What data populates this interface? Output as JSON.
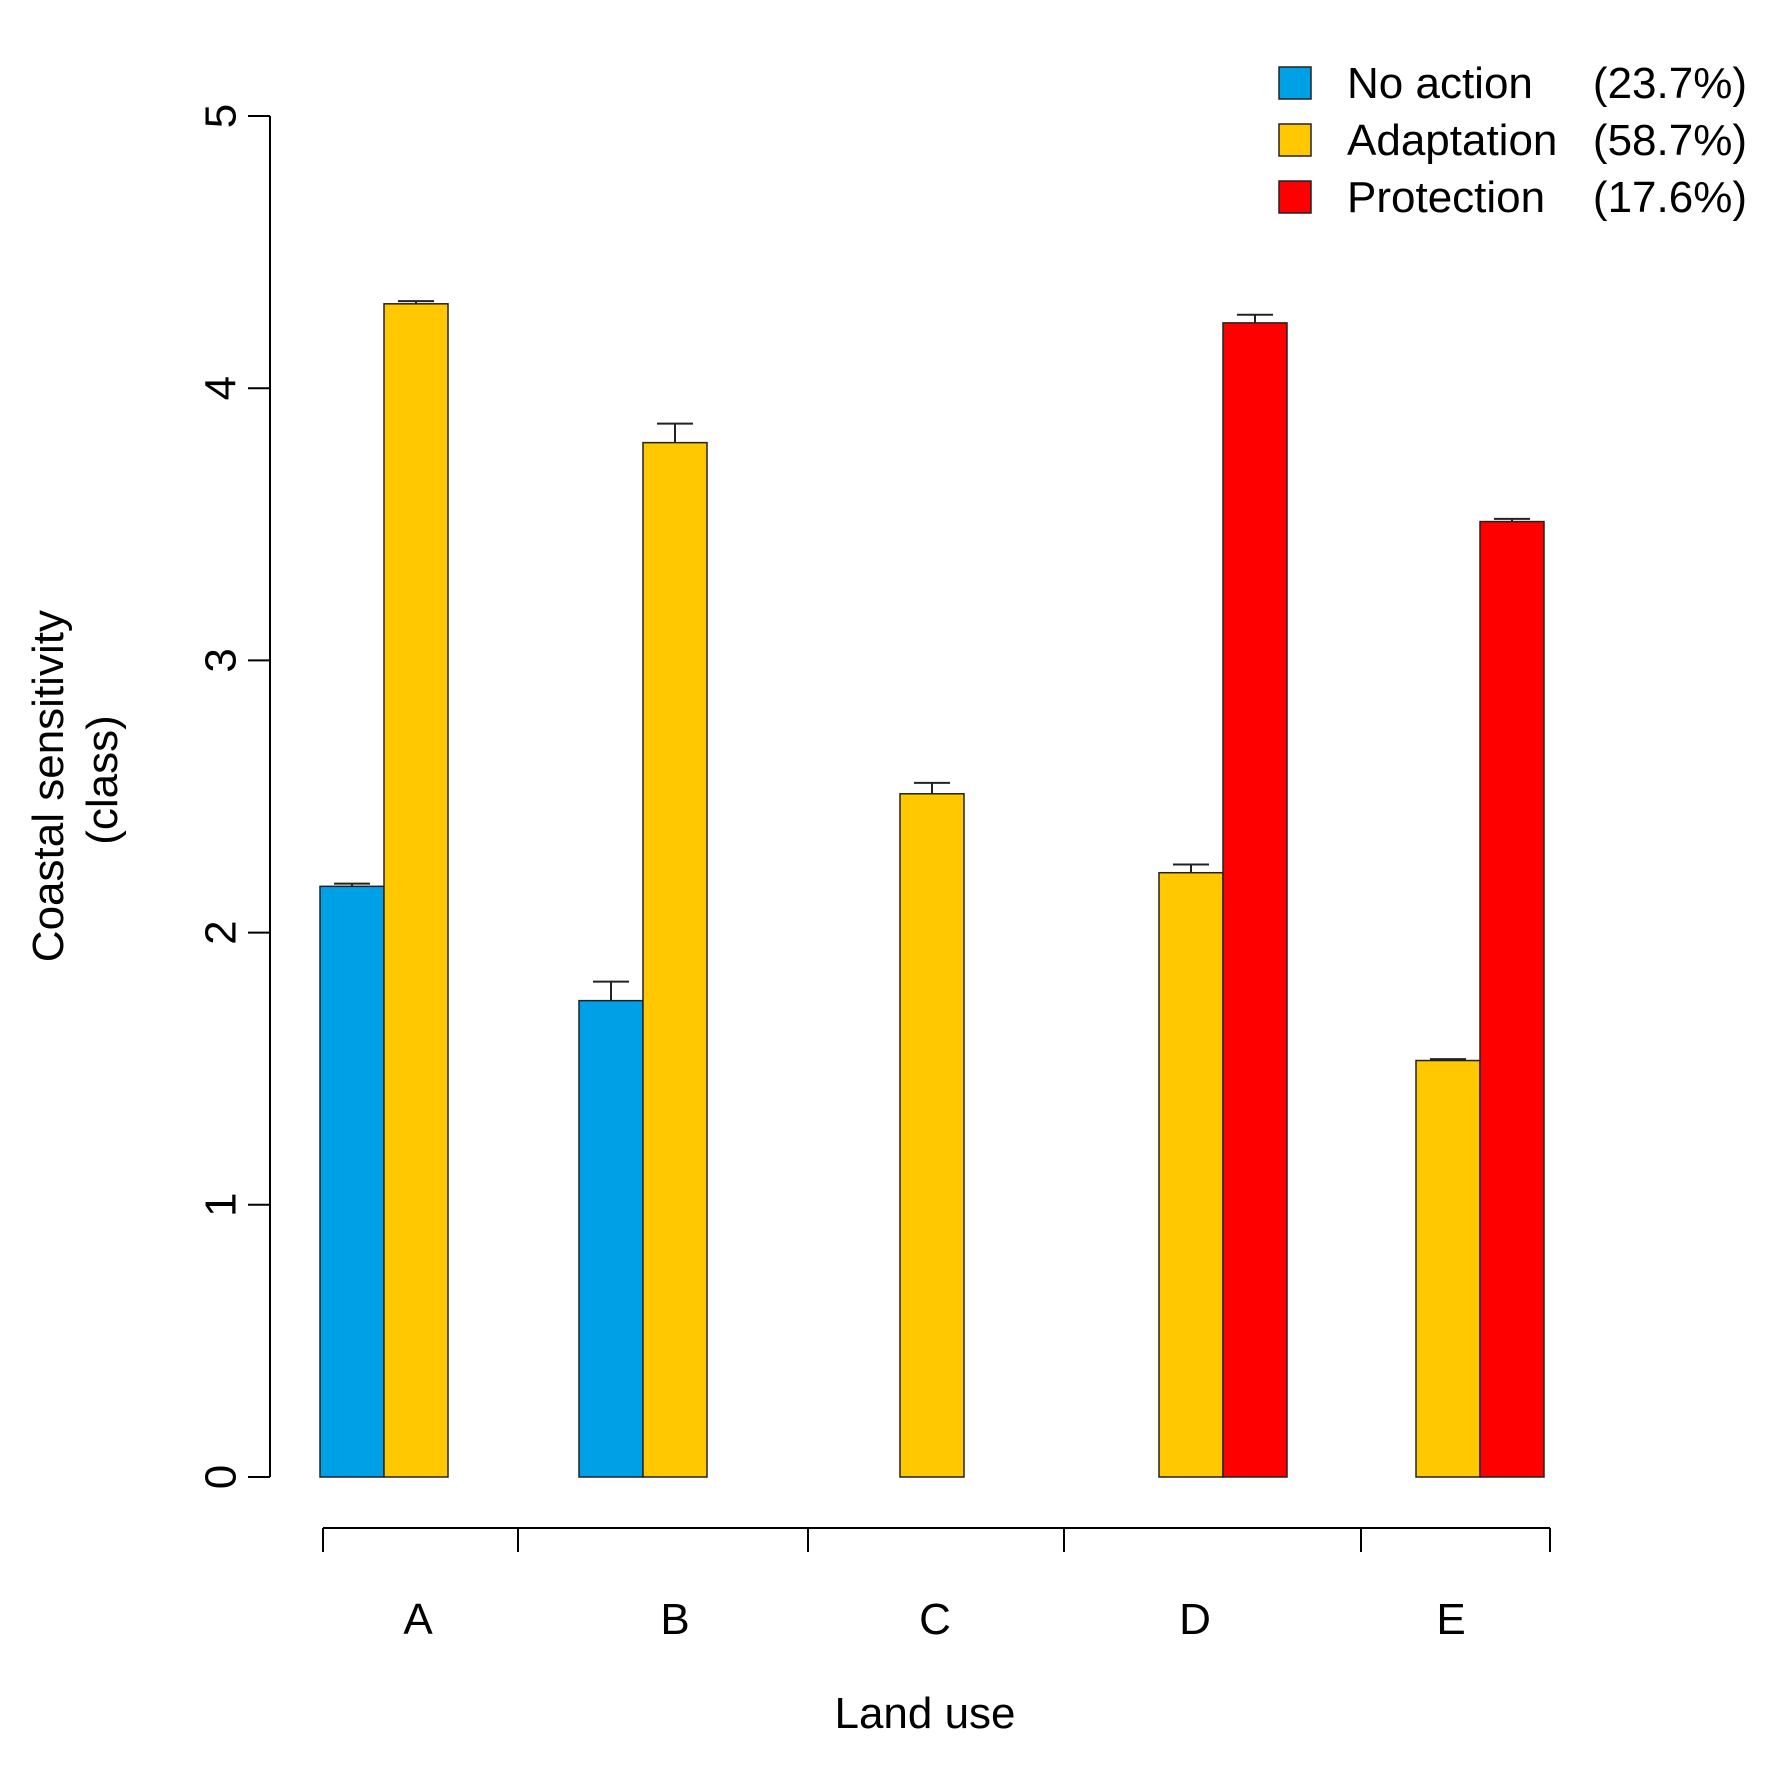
{
  "chart_data": {
    "type": "bar",
    "title": "",
    "xlabel": "Land use",
    "ylabel": [
      "Coastal sensitivity",
      "(class)"
    ],
    "ylim": [
      0,
      5
    ],
    "yticks": [
      0,
      1,
      2,
      3,
      4,
      5
    ],
    "grid": false,
    "legend_position": "top-right",
    "categories": [
      "A",
      "B",
      "C",
      "D",
      "E"
    ],
    "series": [
      {
        "name": "No action",
        "share": "(23.7%)",
        "color": "#00A0E6",
        "values": [
          2.17,
          1.75,
          null,
          null,
          null
        ],
        "errors": [
          0.01,
          0.07,
          null,
          null,
          null
        ]
      },
      {
        "name": "Adaptation",
        "share": "(58.7%)",
        "color": "#FFC800",
        "values": [
          4.31,
          3.8,
          2.51,
          2.22,
          1.53
        ],
        "errors": [
          0.01,
          0.07,
          0.04,
          0.03,
          0.005
        ]
      },
      {
        "name": "Protection",
        "share": "(17.6%)",
        "color": "#FF0000",
        "values": [
          null,
          null,
          null,
          4.24,
          3.51
        ],
        "errors": [
          null,
          null,
          null,
          0.03,
          0.01
        ]
      }
    ]
  }
}
